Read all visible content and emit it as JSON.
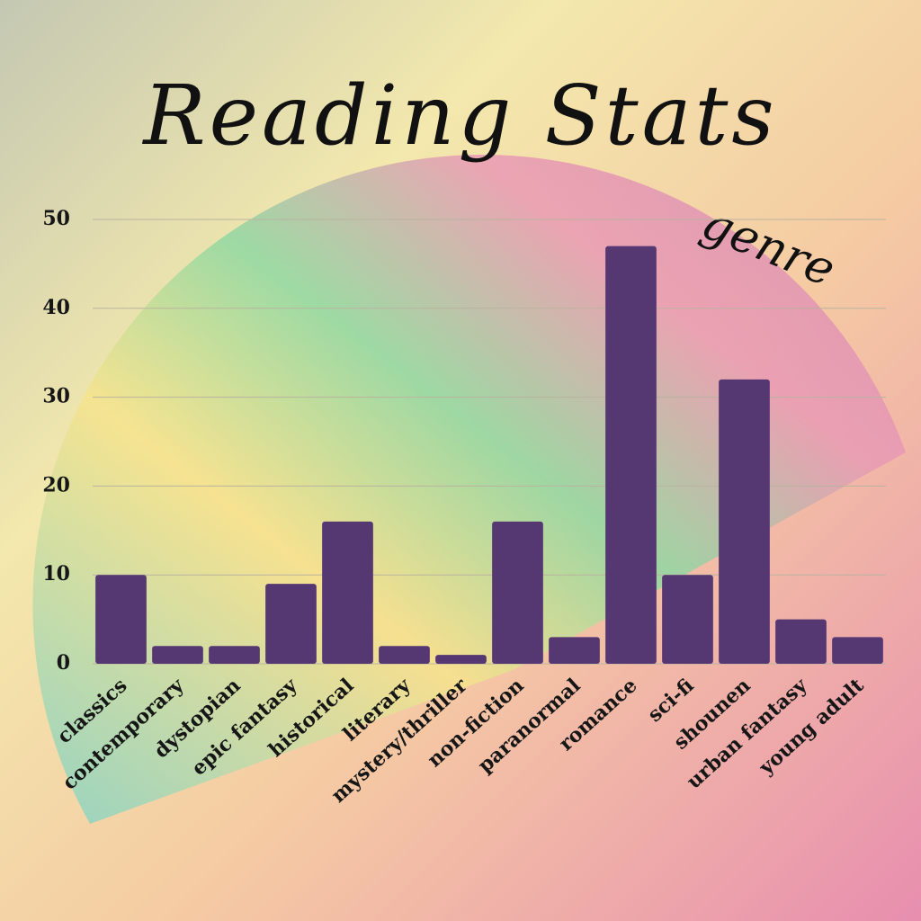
{
  "chart_data": {
    "type": "bar",
    "title": "Reading Stats",
    "subtitle": "genre",
    "categories": [
      "classics",
      "contemporary",
      "dystopian",
      "epic fantasy",
      "historical",
      "literary",
      "mystery/thriller",
      "non-fiction",
      "paranormal",
      "romance",
      "sci-fi",
      "shounen",
      "urban fantasy",
      "young adult"
    ],
    "values": [
      10,
      2,
      2,
      9,
      16,
      2,
      1,
      16,
      3,
      47,
      10,
      32,
      5,
      3
    ],
    "color": "#553771",
    "ylim": [
      0,
      50
    ],
    "yticks": [
      0,
      10,
      20,
      30,
      40,
      50
    ],
    "grid": true
  }
}
